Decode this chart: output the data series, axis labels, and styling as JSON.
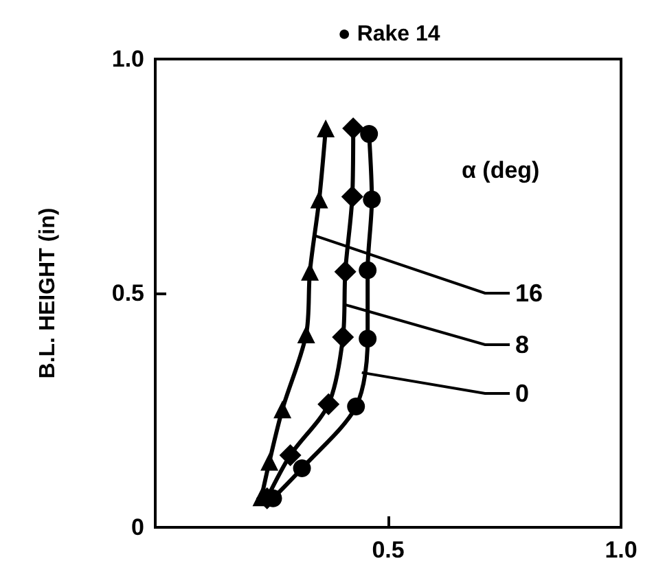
{
  "chart_data": {
    "type": "line",
    "title": "● Rake 14",
    "ylabel": "B.L. HEIGHT (in)",
    "legend_title": "α (deg)",
    "legend": false,
    "grid": false,
    "xlim": [
      0,
      1
    ],
    "xticks": [
      {
        "value": 0,
        "label": null
      },
      0.5,
      {
        "value": 1,
        "label": "1.0"
      }
    ],
    "ylim": [
      0,
      1
    ],
    "yticks": [
      0,
      0.5,
      {
        "value": 1,
        "label": "1.0"
      }
    ],
    "series": [
      {
        "name": "16",
        "color": "#000000",
        "marker": "triangle",
        "x": [
          0.228,
          0.245,
          0.273,
          0.324,
          0.332,
          0.352,
          0.366
        ],
        "values": [
          0.064,
          0.14,
          0.252,
          0.412,
          0.546,
          0.7,
          0.852
        ]
      },
      {
        "name": "8",
        "color": "#000000",
        "marker": "diamond",
        "x": [
          0.24,
          0.29,
          0.372,
          0.403,
          0.408,
          0.423,
          0.425
        ],
        "values": [
          0.062,
          0.154,
          0.263,
          0.406,
          0.546,
          0.706,
          0.852
        ]
      },
      {
        "name": "0",
        "color": "#000000",
        "marker": "circle",
        "x": [
          0.253,
          0.315,
          0.431,
          0.456,
          0.456,
          0.465,
          0.459
        ],
        "values": [
          0.062,
          0.126,
          0.258,
          0.403,
          0.549,
          0.7,
          0.84
        ]
      }
    ]
  }
}
